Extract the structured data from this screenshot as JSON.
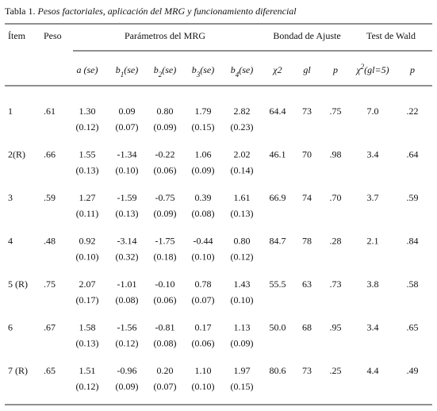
{
  "title": {
    "label": "Tabla 1.",
    "text": "Pesos factoriales, aplicación del MRG y funcionamiento diferencial"
  },
  "table": {
    "headers": [
      "Ítem",
      "Peso",
      "Parámetros del MRG",
      "Bondad de Ajuste",
      "Test de Wald"
    ],
    "subheaders": [
      {
        "base": "a (se)"
      },
      {
        "base": "b",
        "sub": "1",
        "rest": "(se)"
      },
      {
        "base": "b",
        "sub": "2",
        "rest": "(se)"
      },
      {
        "base": "b",
        "sub": "3",
        "rest": "(se)"
      },
      {
        "base": "b",
        "sub": "4",
        "rest": "(se)"
      },
      {
        "base": "χ2"
      },
      {
        "base": "gl"
      },
      {
        "base": "p"
      },
      {
        "base": "χ",
        "sup": "2",
        "rest": "(gl=5)"
      },
      {
        "base": "p"
      }
    ],
    "rows": [
      {
        "item": "1",
        "peso": ".61",
        "params": [
          "1.30",
          "0.09",
          "0.80",
          "1.79",
          "2.82"
        ],
        "se": [
          "(0.12)",
          "(0.07)",
          "(0.09)",
          "(0.15)",
          "(0.23)"
        ],
        "fit": [
          "64.4",
          "73",
          ".75"
        ],
        "wald": [
          "7.0",
          ".22"
        ]
      },
      {
        "item": "2(R)",
        "peso": ".66",
        "params": [
          "1.55",
          "-1.34",
          "-0.22",
          "1.06",
          "2.02"
        ],
        "se": [
          "(0.13)",
          "(0.10)",
          "(0.06)",
          "(0.09)",
          "(0.14)"
        ],
        "fit": [
          "46.1",
          "70",
          ".98"
        ],
        "wald": [
          "3.4",
          ".64"
        ]
      },
      {
        "item": "3",
        "peso": ".59",
        "params": [
          "1.27",
          "-1.59",
          "-0.75",
          "0.39",
          "1.61"
        ],
        "se": [
          "(0.11)",
          "(0.13)",
          "(0.09)",
          "(0.08)",
          "(0.13)"
        ],
        "fit": [
          "66.9",
          "74",
          ".70"
        ],
        "wald": [
          "3.7",
          ".59"
        ]
      },
      {
        "item": "4",
        "peso": ".48",
        "params": [
          "0.92",
          "-3.14",
          "-1.75",
          "-0.44",
          "0.80"
        ],
        "se": [
          "(0.10)",
          "(0.32)",
          "(0.18)",
          "(0.10)",
          "(0.12)"
        ],
        "fit": [
          "84.7",
          "78",
          ".28"
        ],
        "wald": [
          "2.1",
          ".84"
        ]
      },
      {
        "item": "5 (R)",
        "peso": ".75",
        "params": [
          "2.07",
          "-1.01",
          "-0.10",
          "0.78",
          "1.43"
        ],
        "se": [
          "(0.17)",
          "(0.08)",
          "(0.06)",
          "(0.07)",
          "(0.10)"
        ],
        "fit": [
          "55.5",
          "63",
          ".73"
        ],
        "wald": [
          "3.8",
          ".58"
        ]
      },
      {
        "item": "6",
        "peso": ".67",
        "params": [
          "1.58",
          "-1.56",
          "-0.81",
          "0.17",
          "1.13"
        ],
        "se": [
          "(0.13)",
          "(0.12)",
          "(0.08)",
          "(0.06)",
          "(0.09)"
        ],
        "fit": [
          "50.0",
          "68",
          ".95"
        ],
        "wald": [
          "3.4",
          ".65"
        ]
      },
      {
        "item": "7 (R)",
        "peso": ".65",
        "params": [
          "1.51",
          "-0.96",
          "0.20",
          "1.10",
          "1.97"
        ],
        "se": [
          "(0.12)",
          "(0.09)",
          "(0.07)",
          "(0.10)",
          "(0.15)"
        ],
        "fit": [
          "80.6",
          "73",
          ".25"
        ],
        "wald": [
          "4.4",
          ".49"
        ]
      }
    ]
  }
}
